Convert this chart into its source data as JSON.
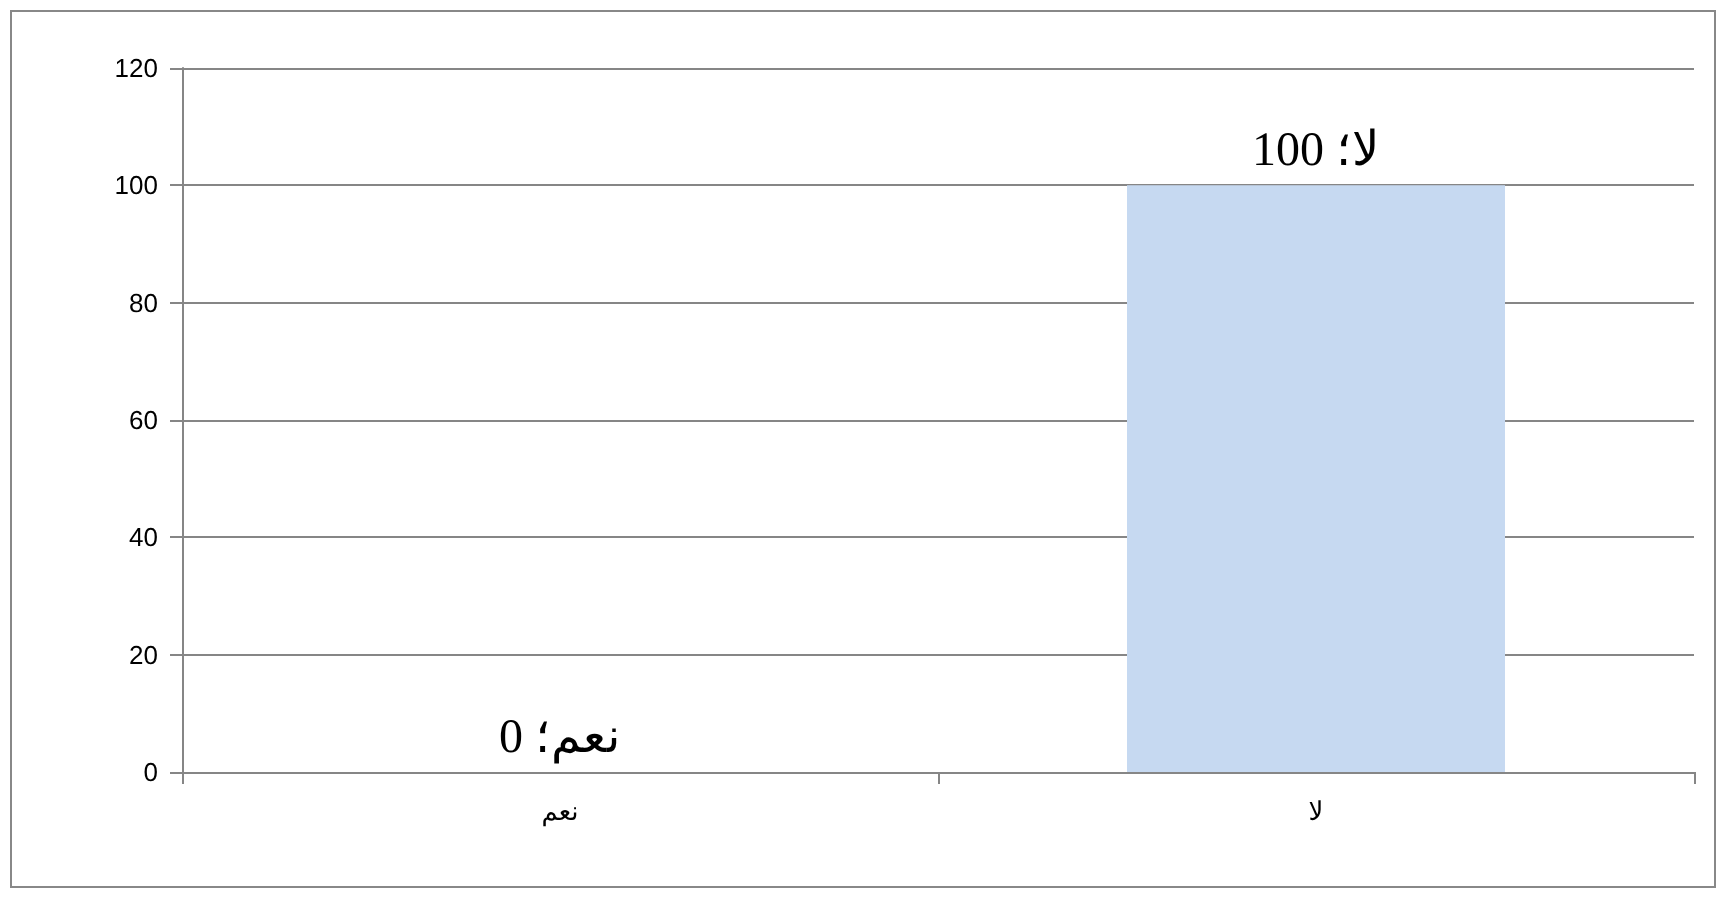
{
  "chart_data": {
    "type": "bar",
    "categories": [
      "نعم",
      "لا"
    ],
    "values": [
      0,
      100
    ],
    "color": "#c6d9f1",
    "value_labels": [
      "نعم؛ 0",
      "لا؛ 100"
    ],
    "ylim": [
      0,
      120
    ],
    "yticks": [
      0,
      20,
      40,
      60,
      80,
      100,
      120
    ],
    "grid": "y"
  }
}
